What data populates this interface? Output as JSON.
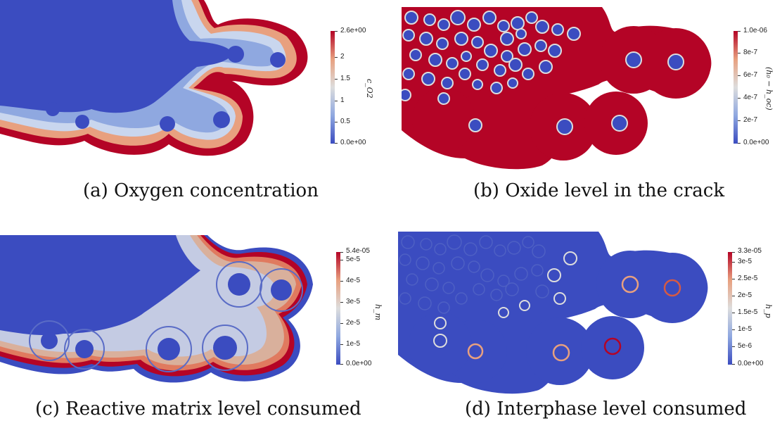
{
  "panels": [
    {
      "id": "a",
      "caption": "(a) Oxygen concentration",
      "colorbar": {
        "ticks": [
          "2.6e+00",
          "2",
          "1.5",
          "1",
          "0.5",
          "0.0e+00"
        ],
        "variable": "c_O2"
      }
    },
    {
      "id": "b",
      "caption": "(b) Oxide level in the crack",
      "colorbar": {
        "ticks": [
          "1.0e-06",
          "8e-7",
          "6e-7",
          "4e-7",
          "2e-7",
          "0.0e+00"
        ],
        "variable": "(h₀ − h_oc)"
      }
    },
    {
      "id": "c",
      "caption": "(c) Reactive matrix level consumed",
      "colorbar": {
        "ticks": [
          "5.4e-05",
          "5e-5",
          "4e-5",
          "3e-5",
          "2e-5",
          "1e-5",
          "0.0e+00"
        ],
        "variable": "h_m"
      }
    },
    {
      "id": "d",
      "caption": "(d) Interphase level consumed",
      "colorbar": {
        "ticks": [
          "3.3e-05",
          "3e-5",
          "2.5e-5",
          "2e-5",
          "1.5e-5",
          "1e-5",
          "5e-6",
          "0.0e+00"
        ],
        "variable": "h_p"
      }
    }
  ],
  "colors": {
    "cold": "#3b4cc0",
    "neutral": "#dddddd",
    "hot": "#b40426"
  }
}
